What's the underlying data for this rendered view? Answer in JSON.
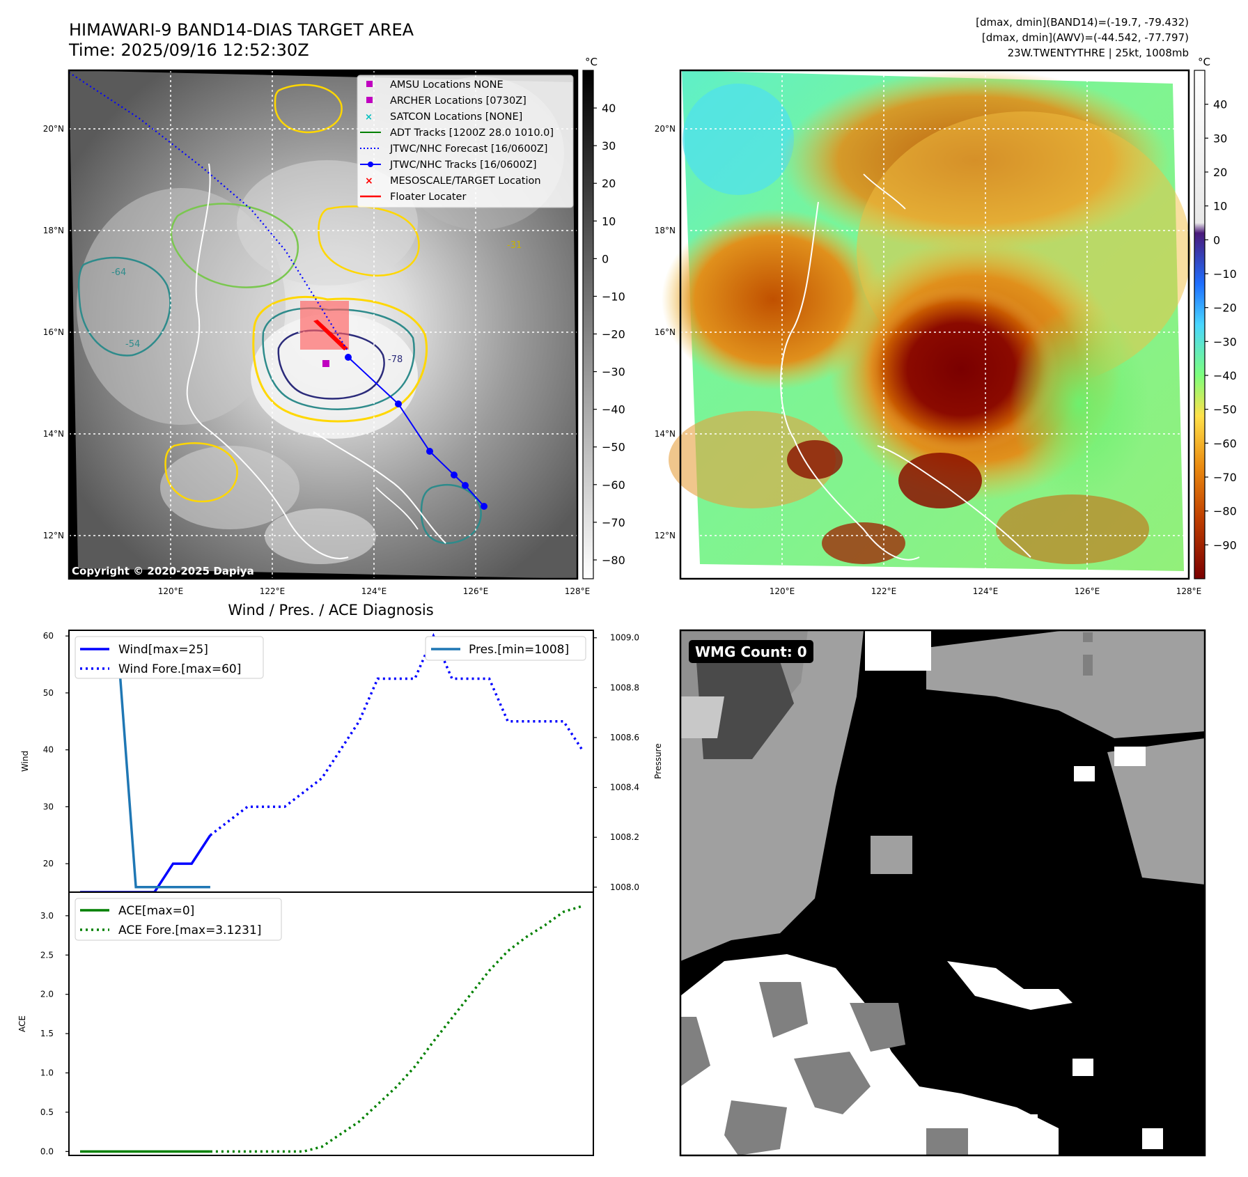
{
  "header": {
    "title": "HIMAWARI-9 BAND14-DIAS TARGET AREA",
    "time": "Time: 2025/09/16 12:52:30Z",
    "info_line1": "[dmax, dmin](BAND14)=(-19.7, -79.432)",
    "info_line2": "[dmax, dmin](AWV)=(-44.542, -77.797)",
    "info_line3": "23W.TWENTYTHRE | 25kt, 1008mb"
  },
  "maps": {
    "lat_labels": [
      "20°N",
      "18°N",
      "16°N",
      "14°N",
      "12°N"
    ],
    "lon_labels": [
      "120°E",
      "122°E",
      "124°E",
      "126°E",
      "128°E"
    ],
    "copyright": "Copyright © 2020-2025 Dapiya",
    "legend": [
      "AMSU Locations NONE",
      "ARCHER Locations [0730Z]",
      "SATCON Locations [NONE]",
      "ADT Tracks [1200Z 28.0 1010.0]",
      "JTWC/NHC Forecast [16/0600Z]",
      "JTWC/NHC Tracks [16/0600Z]",
      "MESOSCALE/TARGET Location",
      "Floater Locater"
    ],
    "contour_labels": [
      "-31",
      "-54",
      "-64",
      "-78"
    ],
    "colorbar1": {
      "unit": "°C",
      "ticks": [
        "40",
        "30",
        "20",
        "10",
        "0",
        "−10",
        "−20",
        "−30",
        "−40",
        "−50",
        "−60",
        "−70",
        "−80"
      ]
    },
    "colorbar2": {
      "unit": "°C",
      "ticks": [
        "40",
        "30",
        "20",
        "10",
        "0",
        "−10",
        "−20",
        "−30",
        "−40",
        "−50",
        "−60",
        "−70",
        "−80",
        "−90"
      ]
    },
    "colors": {
      "track": "#0000ff",
      "archer": "#c000c0",
      "target": "#ff0000",
      "adt": "#008000",
      "satcon": "#00bfbf"
    }
  },
  "diagnosis": {
    "title": "Wind / Pres. / ACE Diagnosis",
    "wmg_label": "WMG Count: 0"
  },
  "chart_data": [
    {
      "type": "line",
      "ylabel": "Wind",
      "ylabel_right": "Pressure",
      "ylim": [
        15,
        61
      ],
      "ylim_right": [
        1007.98,
        1009.03
      ],
      "yticks": [
        "20",
        "30",
        "40",
        "50",
        "60"
      ],
      "yticks_right": [
        "1008.0",
        "1008.2",
        "1008.4",
        "1008.6",
        "1008.8",
        "1009.0"
      ],
      "xlim": [
        -0.6,
        27.6
      ],
      "series": [
        {
          "name": "Wind[max=25]",
          "x": [
            0,
            1,
            2,
            3,
            4,
            5,
            6,
            7
          ],
          "values": [
            15,
            15,
            15,
            15,
            15,
            20,
            20,
            25
          ]
        },
        {
          "name": "Wind Fore.[max=60]",
          "x": [
            7,
            8,
            9,
            10,
            11,
            12,
            13,
            14,
            15,
            16,
            17,
            18,
            19,
            20,
            21,
            22,
            23,
            24,
            25,
            26,
            27
          ],
          "values": [
            25,
            27.5,
            30,
            30,
            30,
            32.5,
            35,
            40,
            45,
            52.5,
            52.5,
            52.5,
            60,
            52.5,
            52.5,
            52.5,
            45,
            45,
            45,
            45,
            40
          ]
        },
        {
          "name": "Pres.[min=1008]",
          "axis": "right",
          "x": [
            1,
            2,
            3,
            4,
            5,
            6,
            7
          ],
          "values": [
            1009,
            1009,
            1008,
            1008,
            1008,
            1008,
            1008
          ]
        }
      ]
    },
    {
      "type": "line",
      "ylabel": "ACE",
      "ylim": [
        -0.05,
        3.3
      ],
      "yticks": [
        "0.0",
        "0.5",
        "1.0",
        "1.5",
        "2.0",
        "2.5",
        "3.0"
      ],
      "xlim": [
        -0.6,
        27.6
      ],
      "series": [
        {
          "name": "ACE[max=0]",
          "x": [
            0,
            1,
            2,
            3,
            4,
            5,
            6,
            7
          ],
          "values": [
            0,
            0,
            0,
            0,
            0,
            0,
            0,
            0
          ]
        },
        {
          "name": "ACE Fore.[max=3.1231]",
          "x": [
            7,
            8,
            9,
            10,
            11,
            12,
            13,
            14,
            15,
            16,
            17,
            18,
            19,
            20,
            21,
            22,
            23,
            24,
            25,
            26,
            27
          ],
          "values": [
            0,
            0,
            0,
            0,
            0,
            0,
            0.06,
            0.22,
            0.38,
            0.6,
            0.82,
            1.08,
            1.4,
            1.7,
            2.0,
            2.3,
            2.55,
            2.73,
            2.88,
            3.05,
            3.1231
          ]
        }
      ]
    }
  ]
}
